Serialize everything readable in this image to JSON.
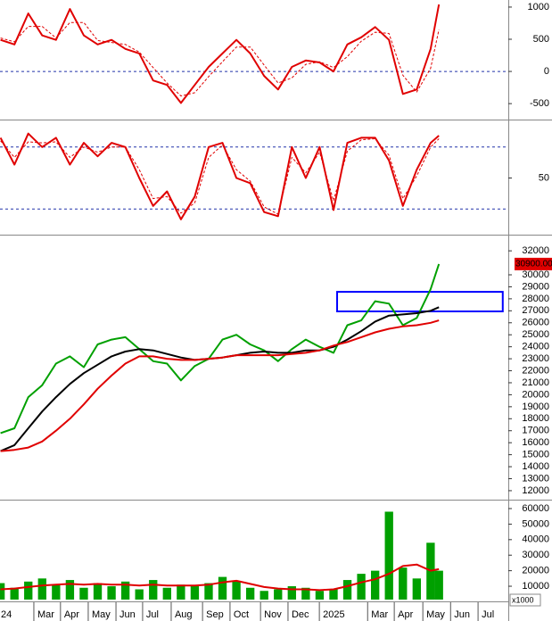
{
  "chart_data": [
    {
      "type": "line",
      "xlim": [
        0.78,
        19.1
      ],
      "ylim": [
        -720,
        1110
      ],
      "yticks": [
        -500,
        0,
        500,
        1000
      ],
      "hlines": [
        0
      ],
      "x": [
        0.8,
        1.3,
        1.8,
        2.3,
        2.8,
        3.3,
        3.8,
        4.3,
        4.8,
        5.3,
        5.8,
        6.3,
        6.8,
        7.3,
        7.8,
        8.3,
        8.8,
        9.3,
        9.8,
        10.3,
        10.8,
        11.3,
        11.8,
        12.3,
        12.8,
        13.3,
        13.8,
        14.3,
        14.8,
        15.3,
        15.8,
        16.3,
        16.6
      ],
      "series": [
        {
          "color": "#e00000",
          "values": [
            490,
            420,
            900,
            560,
            490,
            970,
            560,
            420,
            490,
            350,
            280,
            -140,
            -210,
            -490,
            -210,
            70,
            280,
            490,
            280,
            -70,
            -280,
            70,
            170,
            140,
            0,
            420,
            530,
            690,
            490,
            -350,
            -280,
            350,
            1040
          ]
        },
        {
          "color": "#e00000",
          "dash": true,
          "values": [
            520,
            460,
            700,
            700,
            520,
            760,
            760,
            480,
            450,
            420,
            300,
            60,
            -180,
            -380,
            -330,
            -80,
            150,
            380,
            380,
            100,
            -180,
            -100,
            110,
            150,
            60,
            230,
            470,
            610,
            590,
            -60,
            -320,
            50,
            650
          ]
        }
      ]
    },
    {
      "type": "line",
      "xlim": [
        0.78,
        19.1
      ],
      "ylim": [
        -4,
        104
      ],
      "yticks": [
        50
      ],
      "hlines": [
        20,
        80
      ],
      "x": [
        0.8,
        1.3,
        1.8,
        2.3,
        2.8,
        3.3,
        3.8,
        4.3,
        4.8,
        5.3,
        5.8,
        6.3,
        6.8,
        7.3,
        7.8,
        8.3,
        8.8,
        9.3,
        9.8,
        10.3,
        10.8,
        11.3,
        11.8,
        12.3,
        12.8,
        13.3,
        13.8,
        14.3,
        14.8,
        15.3,
        15.8,
        16.3,
        16.6
      ],
      "series": [
        {
          "color": "#e00000",
          "values": [
            89,
            63,
            93,
            80,
            89,
            63,
            84,
            71,
            84,
            80,
            50,
            23,
            37,
            10,
            32,
            80,
            84,
            50,
            45,
            17,
            13,
            80,
            50,
            80,
            19,
            84,
            89,
            89,
            67,
            23,
            58,
            84,
            91
          ]
        },
        {
          "color": "#e00000",
          "dash": true,
          "values": [
            86,
            70,
            85,
            84,
            85,
            70,
            80,
            75,
            80,
            80,
            58,
            30,
            32,
            16,
            26,
            70,
            82,
            58,
            47,
            22,
            15,
            70,
            55,
            75,
            28,
            76,
            87,
            88,
            72,
            30,
            52,
            80,
            88
          ]
        }
      ]
    },
    {
      "type": "line",
      "xlim": [
        0.78,
        19.1
      ],
      "ylim": [
        11400,
        33200
      ],
      "yticks": [
        12000,
        13000,
        14000,
        15000,
        16000,
        17000,
        18000,
        19000,
        20000,
        21000,
        22000,
        23000,
        24000,
        25000,
        26000,
        27000,
        28000,
        29000,
        30000,
        32000
      ],
      "x": [
        0.8,
        1.3,
        1.8,
        2.3,
        2.8,
        3.3,
        3.8,
        4.3,
        4.8,
        5.3,
        5.8,
        6.3,
        6.8,
        7.3,
        7.8,
        8.3,
        8.8,
        9.3,
        9.8,
        10.3,
        10.8,
        11.3,
        11.8,
        12.3,
        12.8,
        13.3,
        13.8,
        14.3,
        14.8,
        15.3,
        15.8,
        16.3,
        16.6
      ],
      "series": [
        {
          "color": "#00a000",
          "values": [
            16800,
            17200,
            19800,
            20800,
            22600,
            23200,
            22300,
            24200,
            24600,
            24800,
            23800,
            22800,
            22600,
            21200,
            22400,
            23000,
            24600,
            25000,
            24200,
            23700,
            22800,
            23800,
            24600,
            24000,
            23500,
            25800,
            26200,
            27800,
            27600,
            25800,
            26400,
            28800,
            30900
          ]
        },
        {
          "color": "#000000",
          "values": [
            15300,
            15800,
            17200,
            18600,
            19800,
            20900,
            21800,
            22500,
            23200,
            23600,
            23800,
            23700,
            23400,
            23100,
            22900,
            23000,
            23100,
            23300,
            23500,
            23600,
            23500,
            23500,
            23700,
            23700,
            24000,
            24600,
            25300,
            26100,
            26600,
            26700,
            26800,
            27000,
            27300
          ]
        },
        {
          "color": "#e00000",
          "values": [
            15300,
            15400,
            15600,
            16100,
            17000,
            18000,
            19200,
            20500,
            21600,
            22600,
            23200,
            23200,
            23000,
            22900,
            22900,
            23000,
            23100,
            23300,
            23300,
            23300,
            23300,
            23400,
            23500,
            23700,
            24100,
            24400,
            24800,
            25200,
            25500,
            25700,
            25800,
            26000,
            26200
          ]
        }
      ],
      "highlight_box": {
        "x": [
          12.93,
          18.9
        ],
        "y": [
          26950,
          28580
        ],
        "color": "#0000ff"
      },
      "last_price_label": {
        "value": 30900,
        "label": "30900.00",
        "color": "#e00000"
      }
    },
    {
      "type": "bar",
      "xlim": [
        0.78,
        19.1
      ],
      "ylim": [
        1400,
        64600
      ],
      "yticks": [
        10000,
        20000,
        30000,
        40000,
        50000,
        60000
      ],
      "x": [
        0.8,
        1.3,
        1.8,
        2.3,
        2.8,
        3.3,
        3.8,
        4.3,
        4.8,
        5.3,
        5.8,
        6.3,
        6.8,
        7.3,
        7.8,
        8.3,
        8.8,
        9.3,
        9.8,
        10.3,
        10.8,
        11.3,
        11.8,
        12.3,
        12.8,
        13.3,
        13.8,
        14.3,
        14.8,
        15.3,
        15.8,
        16.3,
        16.6
      ],
      "series": [
        {
          "type": "bar",
          "color": "#00a000",
          "values": [
            12000,
            9000,
            13000,
            15000,
            11000,
            14000,
            9000,
            12000,
            10000,
            13000,
            8000,
            14000,
            9000,
            11000,
            10000,
            12000,
            16000,
            13000,
            9000,
            7000,
            8000,
            10000,
            9000,
            7000,
            8000,
            14000,
            18000,
            20000,
            58000,
            22000,
            15000,
            38000,
            20000
          ]
        },
        {
          "type": "line",
          "color": "#e00000",
          "values": [
            8000,
            8500,
            9500,
            10500,
            11000,
            11500,
            11000,
            11500,
            11000,
            11000,
            10500,
            11000,
            10500,
            10500,
            10500,
            11000,
            12500,
            13500,
            11500,
            9500,
            8500,
            8000,
            8000,
            7500,
            8000,
            10000,
            12500,
            14500,
            18000,
            23000,
            24000,
            20000,
            21000
          ]
        }
      ],
      "unit_label": "x1000",
      "xticks": [
        {
          "value": 0,
          "label": "24"
        },
        {
          "value": 2.0,
          "label": "Mar"
        },
        {
          "value": 2.96,
          "label": "Apr"
        },
        {
          "value": 3.96,
          "label": "May"
        },
        {
          "value": 4.96,
          "label": "Jun"
        },
        {
          "value": 5.92,
          "label": "Jul"
        },
        {
          "value": 6.95,
          "label": "Aug"
        },
        {
          "value": 8.08,
          "label": "Sep"
        },
        {
          "value": 9.07,
          "label": "Oct"
        },
        {
          "value": 10.17,
          "label": "Nov"
        },
        {
          "value": 11.16,
          "label": "Dec"
        },
        {
          "value": 12.29,
          "label": "2025"
        },
        {
          "value": 14.03,
          "label": "Mar"
        },
        {
          "value": 14.99,
          "label": "Apr"
        },
        {
          "value": 16.02,
          "label": "May"
        },
        {
          "value": 17.02,
          "label": "Jun"
        },
        {
          "value": 18.01,
          "label": "Jul"
        }
      ]
    }
  ]
}
